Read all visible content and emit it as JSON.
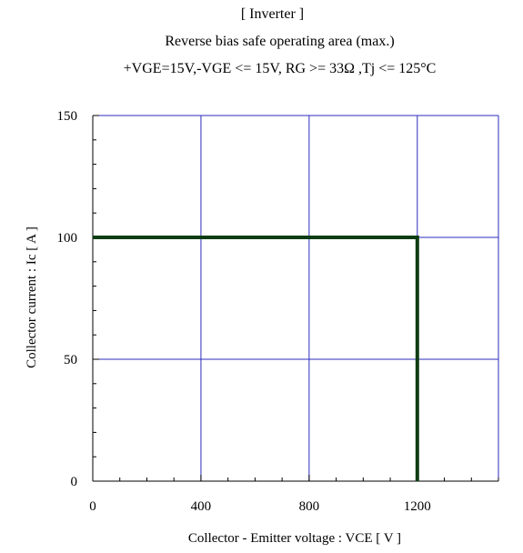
{
  "chart_data": {
    "type": "line",
    "title": "[ Inverter ]",
    "subtitle": "Reverse bias safe operating area (max.)",
    "conditions": "+VGE=15V,-VGE <= 15V, RG >= 33Ω ,Tj <= 125°C",
    "xlabel": "Collector - Emitter voltage : VCE [ V ]",
    "ylabel": "Collector current : Ic [ A ]",
    "xlim": [
      0,
      1500
    ],
    "ylim": [
      0,
      150
    ],
    "x_ticks": [
      0,
      400,
      800,
      1200
    ],
    "y_ticks": [
      0,
      50,
      100,
      150
    ],
    "x_minor_step": 100,
    "y_minor_step": 10,
    "x_grid": [
      400,
      800,
      1200
    ],
    "y_grid": [
      50,
      100
    ],
    "grid": true,
    "legend": "none",
    "series": [
      {
        "x": [
          0,
          1200,
          1200
        ],
        "y": [
          100,
          100,
          0
        ],
        "color": "#0d3d12"
      }
    ],
    "colors": {
      "grid": "#2b2bbf",
      "frame": "#2b2bbf",
      "axis": "#000000",
      "series": "#0d3d12"
    }
  }
}
